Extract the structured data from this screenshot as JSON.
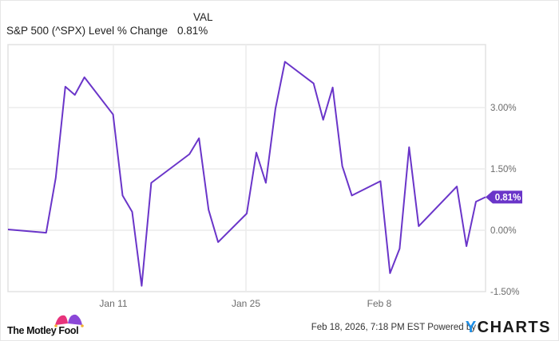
{
  "legend": {
    "column_header": "VAL",
    "series_name": "S&P 500 (^SPX) Level % Change",
    "series_value": "0.81%"
  },
  "footer": {
    "timestamp": "Feb 18, 2026, 7:18 PM EST",
    "powered_by": "Powered by",
    "ycharts_y": "Y",
    "ycharts_rest": "CHARTS",
    "logo_text": "The Motley Fool"
  },
  "colors": {
    "line": "#6a35c9",
    "grid": "#ebebeb",
    "axis_text": "#6b6b6b",
    "callout_bg": "#6a35c9",
    "ycharts_blue": "#1f8fe6"
  },
  "chart_data": {
    "type": "line",
    "title": "S&P 500 (^SPX) Level % Change",
    "xlabel": "",
    "ylabel": "",
    "ylim": [
      -1.5,
      4.3
    ],
    "grid": true,
    "legend_position": "top-left",
    "y_axis_position": "right",
    "yticks": [
      3.0,
      1.5,
      0.0,
      -1.5
    ],
    "ytick_labels": [
      "3.00%",
      "1.50%",
      "0.00%",
      "-1.50%"
    ],
    "xticks": [
      "Jan 11",
      "Jan 25",
      "Feb 8"
    ],
    "last_value_label": "0.81%",
    "series": [
      {
        "name": "S&P 500 (^SPX) Level % Change",
        "x": [
          0,
          4,
          5,
          6,
          7,
          8,
          11,
          12,
          13,
          14,
          15,
          19,
          20,
          21,
          22,
          25,
          26,
          27,
          28,
          29,
          32,
          33,
          34,
          35,
          36,
          39,
          40,
          41,
          42,
          43,
          47,
          48,
          49,
          50
        ],
        "values": [
          0.02,
          -0.06,
          1.28,
          3.51,
          3.31,
          3.74,
          2.83,
          0.85,
          0.45,
          -1.36,
          1.16,
          1.86,
          2.25,
          0.5,
          -0.29,
          0.41,
          1.9,
          1.16,
          2.97,
          4.12,
          3.59,
          2.7,
          3.49,
          1.57,
          0.85,
          1.2,
          -1.05,
          -0.45,
          2.03,
          0.1,
          1.07,
          -0.39,
          0.7,
          0.81
        ]
      }
    ]
  }
}
